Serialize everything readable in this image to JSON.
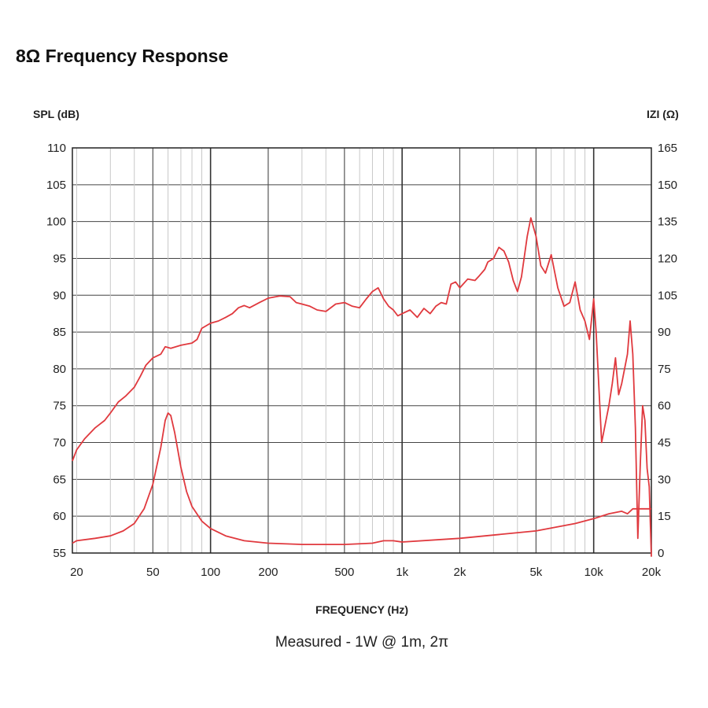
{
  "title": "8Ω Frequency Response",
  "chart_data": {
    "type": "line",
    "xlabel": "FREQUENCY (Hz)",
    "subtitle": "Measured - 1W @ 1m, 2π",
    "ylabel_left": "SPL (dB)",
    "ylabel_right": "IZI (Ω)",
    "x_scale": "log",
    "xlim": [
      19,
      20000
    ],
    "ylim_left": [
      55,
      110
    ],
    "ylim_right": [
      0,
      165
    ],
    "grid": true,
    "x_ticks": [
      {
        "value": 20,
        "label": "20"
      },
      {
        "value": 50,
        "label": "50"
      },
      {
        "value": 100,
        "label": "100"
      },
      {
        "value": 200,
        "label": "200"
      },
      {
        "value": 500,
        "label": "500"
      },
      {
        "value": 1000,
        "label": "1k"
      },
      {
        "value": 2000,
        "label": "2k"
      },
      {
        "value": 5000,
        "label": "5k"
      },
      {
        "value": 10000,
        "label": "10k"
      },
      {
        "value": 20000,
        "label": "20k"
      }
    ],
    "y_ticks_left": [
      {
        "value": 110,
        "label": "110"
      },
      {
        "value": 105,
        "label": "105"
      },
      {
        "value": 100,
        "label": "100"
      },
      {
        "value": 95,
        "label": "95"
      },
      {
        "value": 90,
        "label": "90"
      },
      {
        "value": 85,
        "label": "85"
      },
      {
        "value": 80,
        "label": "80"
      },
      {
        "value": 75,
        "label": "75"
      },
      {
        "value": 70,
        "label": "70"
      },
      {
        "value": 65,
        "label": "65"
      },
      {
        "value": 60,
        "label": "60"
      },
      {
        "value": 55,
        "label": "55"
      }
    ],
    "y_ticks_right": [
      {
        "value": 165,
        "label": "165"
      },
      {
        "value": 150,
        "label": "150"
      },
      {
        "value": 135,
        "label": "135"
      },
      {
        "value": 120,
        "label": "120"
      },
      {
        "value": 105,
        "label": "105"
      },
      {
        "value": 90,
        "label": "90"
      },
      {
        "value": 75,
        "label": "75"
      },
      {
        "value": 60,
        "label": "60"
      },
      {
        "value": 45,
        "label": "45"
      },
      {
        "value": 30,
        "label": "30"
      },
      {
        "value": 15,
        "label": "15"
      },
      {
        "value": 0,
        "label": "0"
      }
    ],
    "series": [
      {
        "axis": "left",
        "color": "#e0393e",
        "points": [
          [
            19,
            67.5
          ],
          [
            20,
            69
          ],
          [
            22,
            70.5
          ],
          [
            25,
            72
          ],
          [
            28,
            73
          ],
          [
            30,
            74
          ],
          [
            33,
            75.5
          ],
          [
            36,
            76.3
          ],
          [
            40,
            77.5
          ],
          [
            43,
            79
          ],
          [
            46,
            80.5
          ],
          [
            50,
            81.5
          ],
          [
            55,
            82
          ],
          [
            58,
            83
          ],
          [
            62,
            82.8
          ],
          [
            70,
            83.2
          ],
          [
            80,
            83.5
          ],
          [
            85,
            84
          ],
          [
            90,
            85.5
          ],
          [
            100,
            86.2
          ],
          [
            110,
            86.5
          ],
          [
            120,
            87
          ],
          [
            130,
            87.5
          ],
          [
            140,
            88.3
          ],
          [
            150,
            88.6
          ],
          [
            160,
            88.3
          ],
          [
            180,
            89
          ],
          [
            200,
            89.6
          ],
          [
            230,
            89.9
          ],
          [
            260,
            89.8
          ],
          [
            280,
            89
          ],
          [
            300,
            88.8
          ],
          [
            330,
            88.5
          ],
          [
            360,
            88
          ],
          [
            400,
            87.8
          ],
          [
            450,
            88.8
          ],
          [
            500,
            89
          ],
          [
            550,
            88.5
          ],
          [
            600,
            88.3
          ],
          [
            650,
            89.5
          ],
          [
            700,
            90.5
          ],
          [
            750,
            91
          ],
          [
            800,
            89.5
          ],
          [
            850,
            88.5
          ],
          [
            900,
            88
          ],
          [
            950,
            87.2
          ],
          [
            1000,
            87.5
          ],
          [
            1100,
            88
          ],
          [
            1200,
            87
          ],
          [
            1300,
            88.2
          ],
          [
            1400,
            87.5
          ],
          [
            1500,
            88.5
          ],
          [
            1600,
            89
          ],
          [
            1700,
            88.8
          ],
          [
            1800,
            91.5
          ],
          [
            1900,
            91.8
          ],
          [
            2000,
            91
          ],
          [
            2200,
            92.2
          ],
          [
            2400,
            92
          ],
          [
            2500,
            92.5
          ],
          [
            2700,
            93.5
          ],
          [
            2800,
            94.5
          ],
          [
            3000,
            95
          ],
          [
            3200,
            96.5
          ],
          [
            3400,
            96
          ],
          [
            3600,
            94.5
          ],
          [
            3800,
            92
          ],
          [
            4000,
            90.5
          ],
          [
            4200,
            92.5
          ],
          [
            4500,
            98
          ],
          [
            4700,
            100.5
          ],
          [
            5000,
            98
          ],
          [
            5300,
            94
          ],
          [
            5600,
            93
          ],
          [
            6000,
            95.5
          ],
          [
            6500,
            91
          ],
          [
            7000,
            88.5
          ],
          [
            7500,
            89
          ],
          [
            8000,
            91.8
          ],
          [
            8500,
            88
          ],
          [
            9000,
            86.5
          ],
          [
            9500,
            84
          ],
          [
            10000,
            89.5
          ],
          [
            10300,
            85
          ],
          [
            11000,
            70
          ],
          [
            12000,
            75
          ],
          [
            12500,
            78
          ],
          [
            13000,
            81.5
          ],
          [
            13500,
            76.5
          ],
          [
            14000,
            78
          ],
          [
            15000,
            82
          ],
          [
            15500,
            86.5
          ],
          [
            16000,
            82
          ],
          [
            16500,
            72
          ],
          [
            17000,
            57
          ],
          [
            17500,
            67
          ],
          [
            18000,
            75
          ],
          [
            18500,
            73
          ],
          [
            19000,
            66.5
          ],
          [
            19500,
            64
          ],
          [
            20000,
            54.5
          ]
        ]
      },
      {
        "axis": "right",
        "color": "#e0393e",
        "points": [
          [
            19,
            4
          ],
          [
            20,
            5
          ],
          [
            25,
            6
          ],
          [
            30,
            7
          ],
          [
            35,
            9
          ],
          [
            40,
            12
          ],
          [
            45,
            18
          ],
          [
            50,
            28
          ],
          [
            55,
            43
          ],
          [
            58,
            54
          ],
          [
            60,
            57
          ],
          [
            62,
            56
          ],
          [
            65,
            49
          ],
          [
            70,
            35
          ],
          [
            75,
            25
          ],
          [
            80,
            19
          ],
          [
            90,
            13
          ],
          [
            100,
            10
          ],
          [
            120,
            7
          ],
          [
            150,
            5
          ],
          [
            200,
            4
          ],
          [
            300,
            3.5
          ],
          [
            500,
            3.5
          ],
          [
            700,
            4
          ],
          [
            800,
            5
          ],
          [
            900,
            5
          ],
          [
            1000,
            4.5
          ],
          [
            2000,
            6
          ],
          [
            5000,
            9
          ],
          [
            8000,
            12
          ],
          [
            10000,
            14
          ],
          [
            12000,
            16
          ],
          [
            14000,
            17
          ],
          [
            15000,
            16
          ],
          [
            16000,
            18
          ],
          [
            18000,
            18
          ],
          [
            20000,
            18
          ]
        ]
      }
    ]
  }
}
